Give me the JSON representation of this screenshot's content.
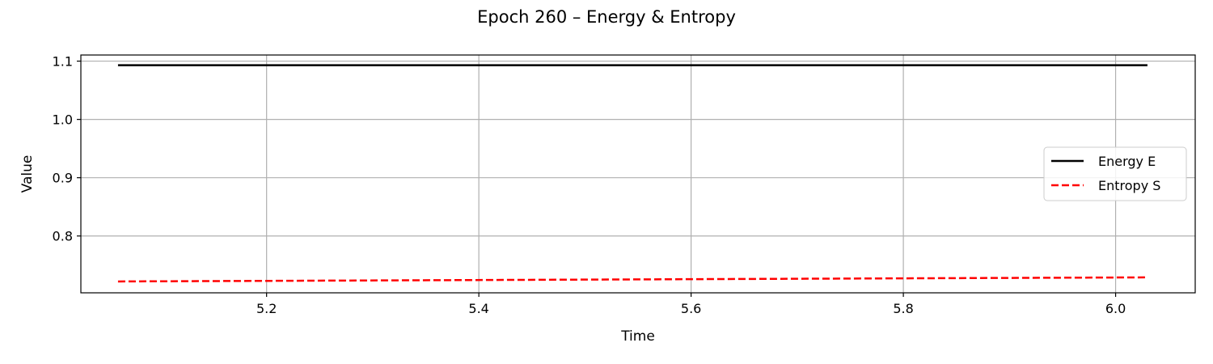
{
  "chart_data": {
    "type": "line",
    "title": "Epoch 260 – Energy & Entropy",
    "xlabel": "Time",
    "ylabel": "Value",
    "xlim": [
      5.025,
      6.075
    ],
    "ylim": [
      0.7025,
      1.1105
    ],
    "xticks": [
      5.2,
      5.4,
      5.6,
      5.8,
      6.0
    ],
    "xtick_labels": [
      "5.2",
      "5.4",
      "5.6",
      "5.8",
      "6.0"
    ],
    "yticks": [
      0.8,
      0.9,
      1.0,
      1.1
    ],
    "ytick_labels": [
      "0.8",
      "0.9",
      "1.0",
      "1.1"
    ],
    "grid": true,
    "legend_position": "center-right",
    "series": [
      {
        "name": "Energy E",
        "color": "#000000",
        "dash": "solid",
        "x": [
          5.06,
          6.03
        ],
        "y": [
          1.093,
          1.093
        ]
      },
      {
        "name": "Entropy S",
        "color": "#ff0000",
        "dash": "dashed",
        "x": [
          5.06,
          6.03
        ],
        "y": [
          0.722,
          0.729
        ]
      }
    ]
  }
}
